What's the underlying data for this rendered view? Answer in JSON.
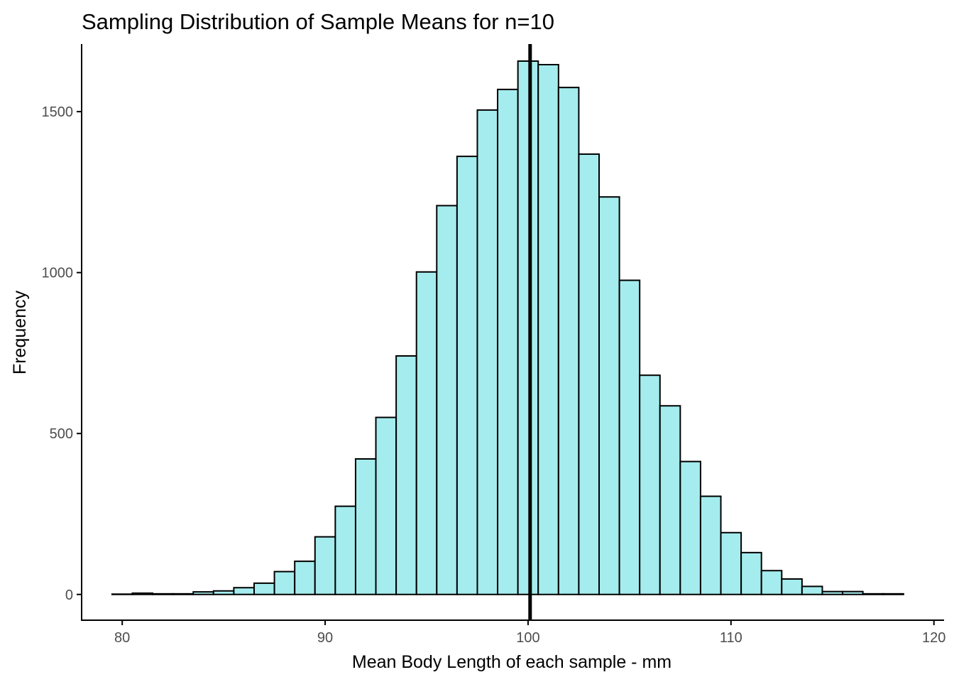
{
  "chart_data": {
    "type": "bar",
    "subtype": "histogram",
    "title": "Sampling Distribution of Sample Means for n=10",
    "xlabel": "Mean Body Length of each sample - mm",
    "ylabel": "Frequency",
    "xlim": [
      78,
      120.5
    ],
    "ylim": [
      -80,
      1710
    ],
    "x_ticks": [
      80,
      90,
      100,
      110,
      120
    ],
    "y_ticks": [
      0,
      500,
      1000,
      1500
    ],
    "grid": false,
    "legend": "none",
    "bin_width": 1,
    "bins": [
      {
        "x0": 79.5,
        "x1": 80.5,
        "count": 1
      },
      {
        "x0": 80.5,
        "x1": 81.5,
        "count": 4
      },
      {
        "x0": 81.5,
        "x1": 82.5,
        "count": 2
      },
      {
        "x0": 82.5,
        "x1": 83.5,
        "count": 2
      },
      {
        "x0": 83.5,
        "x1": 84.5,
        "count": 8
      },
      {
        "x0": 84.5,
        "x1": 85.5,
        "count": 11
      },
      {
        "x0": 85.5,
        "x1": 86.5,
        "count": 21
      },
      {
        "x0": 86.5,
        "x1": 87.5,
        "count": 35
      },
      {
        "x0": 87.5,
        "x1": 88.5,
        "count": 71
      },
      {
        "x0": 88.5,
        "x1": 89.5,
        "count": 103
      },
      {
        "x0": 89.5,
        "x1": 90.5,
        "count": 179
      },
      {
        "x0": 90.5,
        "x1": 91.5,
        "count": 274
      },
      {
        "x0": 91.5,
        "x1": 92.5,
        "count": 421
      },
      {
        "x0": 92.5,
        "x1": 93.5,
        "count": 550
      },
      {
        "x0": 93.5,
        "x1": 94.5,
        "count": 741
      },
      {
        "x0": 94.5,
        "x1": 95.5,
        "count": 1002
      },
      {
        "x0": 95.5,
        "x1": 96.5,
        "count": 1208
      },
      {
        "x0": 96.5,
        "x1": 97.5,
        "count": 1361
      },
      {
        "x0": 97.5,
        "x1": 98.5,
        "count": 1505
      },
      {
        "x0": 98.5,
        "x1": 99.5,
        "count": 1569
      },
      {
        "x0": 99.5,
        "x1": 100.5,
        "count": 1657
      },
      {
        "x0": 100.5,
        "x1": 101.5,
        "count": 1646
      },
      {
        "x0": 101.5,
        "x1": 102.5,
        "count": 1575
      },
      {
        "x0": 102.5,
        "x1": 103.5,
        "count": 1368
      },
      {
        "x0": 103.5,
        "x1": 104.5,
        "count": 1235
      },
      {
        "x0": 104.5,
        "x1": 105.5,
        "count": 976
      },
      {
        "x0": 105.5,
        "x1": 106.5,
        "count": 681
      },
      {
        "x0": 106.5,
        "x1": 107.5,
        "count": 586
      },
      {
        "x0": 107.5,
        "x1": 108.5,
        "count": 413
      },
      {
        "x0": 108.5,
        "x1": 109.5,
        "count": 305
      },
      {
        "x0": 109.5,
        "x1": 110.5,
        "count": 192
      },
      {
        "x0": 110.5,
        "x1": 111.5,
        "count": 130
      },
      {
        "x0": 111.5,
        "x1": 112.5,
        "count": 74
      },
      {
        "x0": 112.5,
        "x1": 113.5,
        "count": 48
      },
      {
        "x0": 113.5,
        "x1": 114.5,
        "count": 25
      },
      {
        "x0": 114.5,
        "x1": 115.5,
        "count": 9
      },
      {
        "x0": 115.5,
        "x1": 116.5,
        "count": 9
      },
      {
        "x0": 116.5,
        "x1": 117.5,
        "count": 2
      },
      {
        "x0": 117.5,
        "x1": 118.5,
        "count": 2
      }
    ],
    "reference_line": {
      "orientation": "vertical",
      "x": 100.1,
      "color": "#000000"
    },
    "colors": {
      "bar_fill": "#a5ecee",
      "bar_outline": "#000000",
      "axis": "#000000",
      "tick_label": "#4d4d4d"
    }
  }
}
